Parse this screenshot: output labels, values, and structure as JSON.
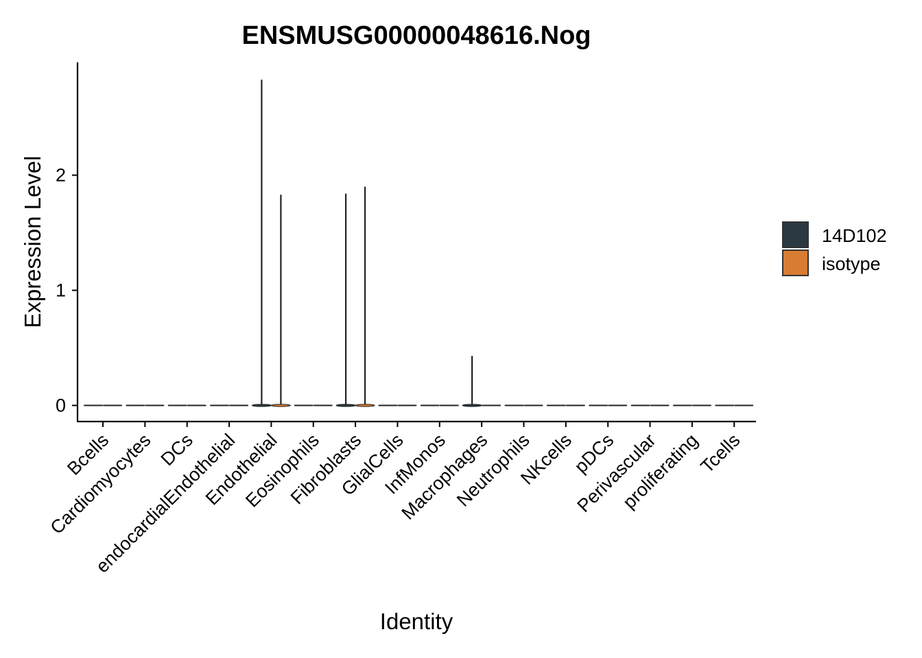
{
  "chart_data": {
    "type": "violin",
    "title": "ENSMUSG00000048616.Nog",
    "xlabel": "Identity",
    "ylabel": "Expression Level",
    "ylim": [
      -0.14,
      2.98
    ],
    "yticks": [
      0,
      1,
      2
    ],
    "grid": false,
    "legend_position": "right",
    "categories": [
      "Bcells",
      "Cardiomyocytes",
      "DCs",
      "endocardialEndothelial",
      "Endothelial",
      "Eosinophils",
      "Fibroblasts",
      "GlialCells",
      "InfMonos",
      "Macrophages",
      "Neutrophils",
      "NKcells",
      "pDCs",
      "Perivascular",
      "proliferating",
      "Tcells"
    ],
    "series": [
      {
        "name": "14D102",
        "color": "#2b3a42",
        "max_values": [
          0,
          0,
          0,
          0,
          2.83,
          0,
          1.84,
          0,
          0,
          0.43,
          0,
          0,
          0,
          0,
          0,
          0
        ]
      },
      {
        "name": "isotype",
        "color": "#d87c33",
        "max_values": [
          0,
          0,
          0,
          0,
          1.83,
          0,
          1.9,
          0,
          0,
          0,
          0,
          0,
          0,
          0,
          0,
          0
        ]
      }
    ]
  }
}
